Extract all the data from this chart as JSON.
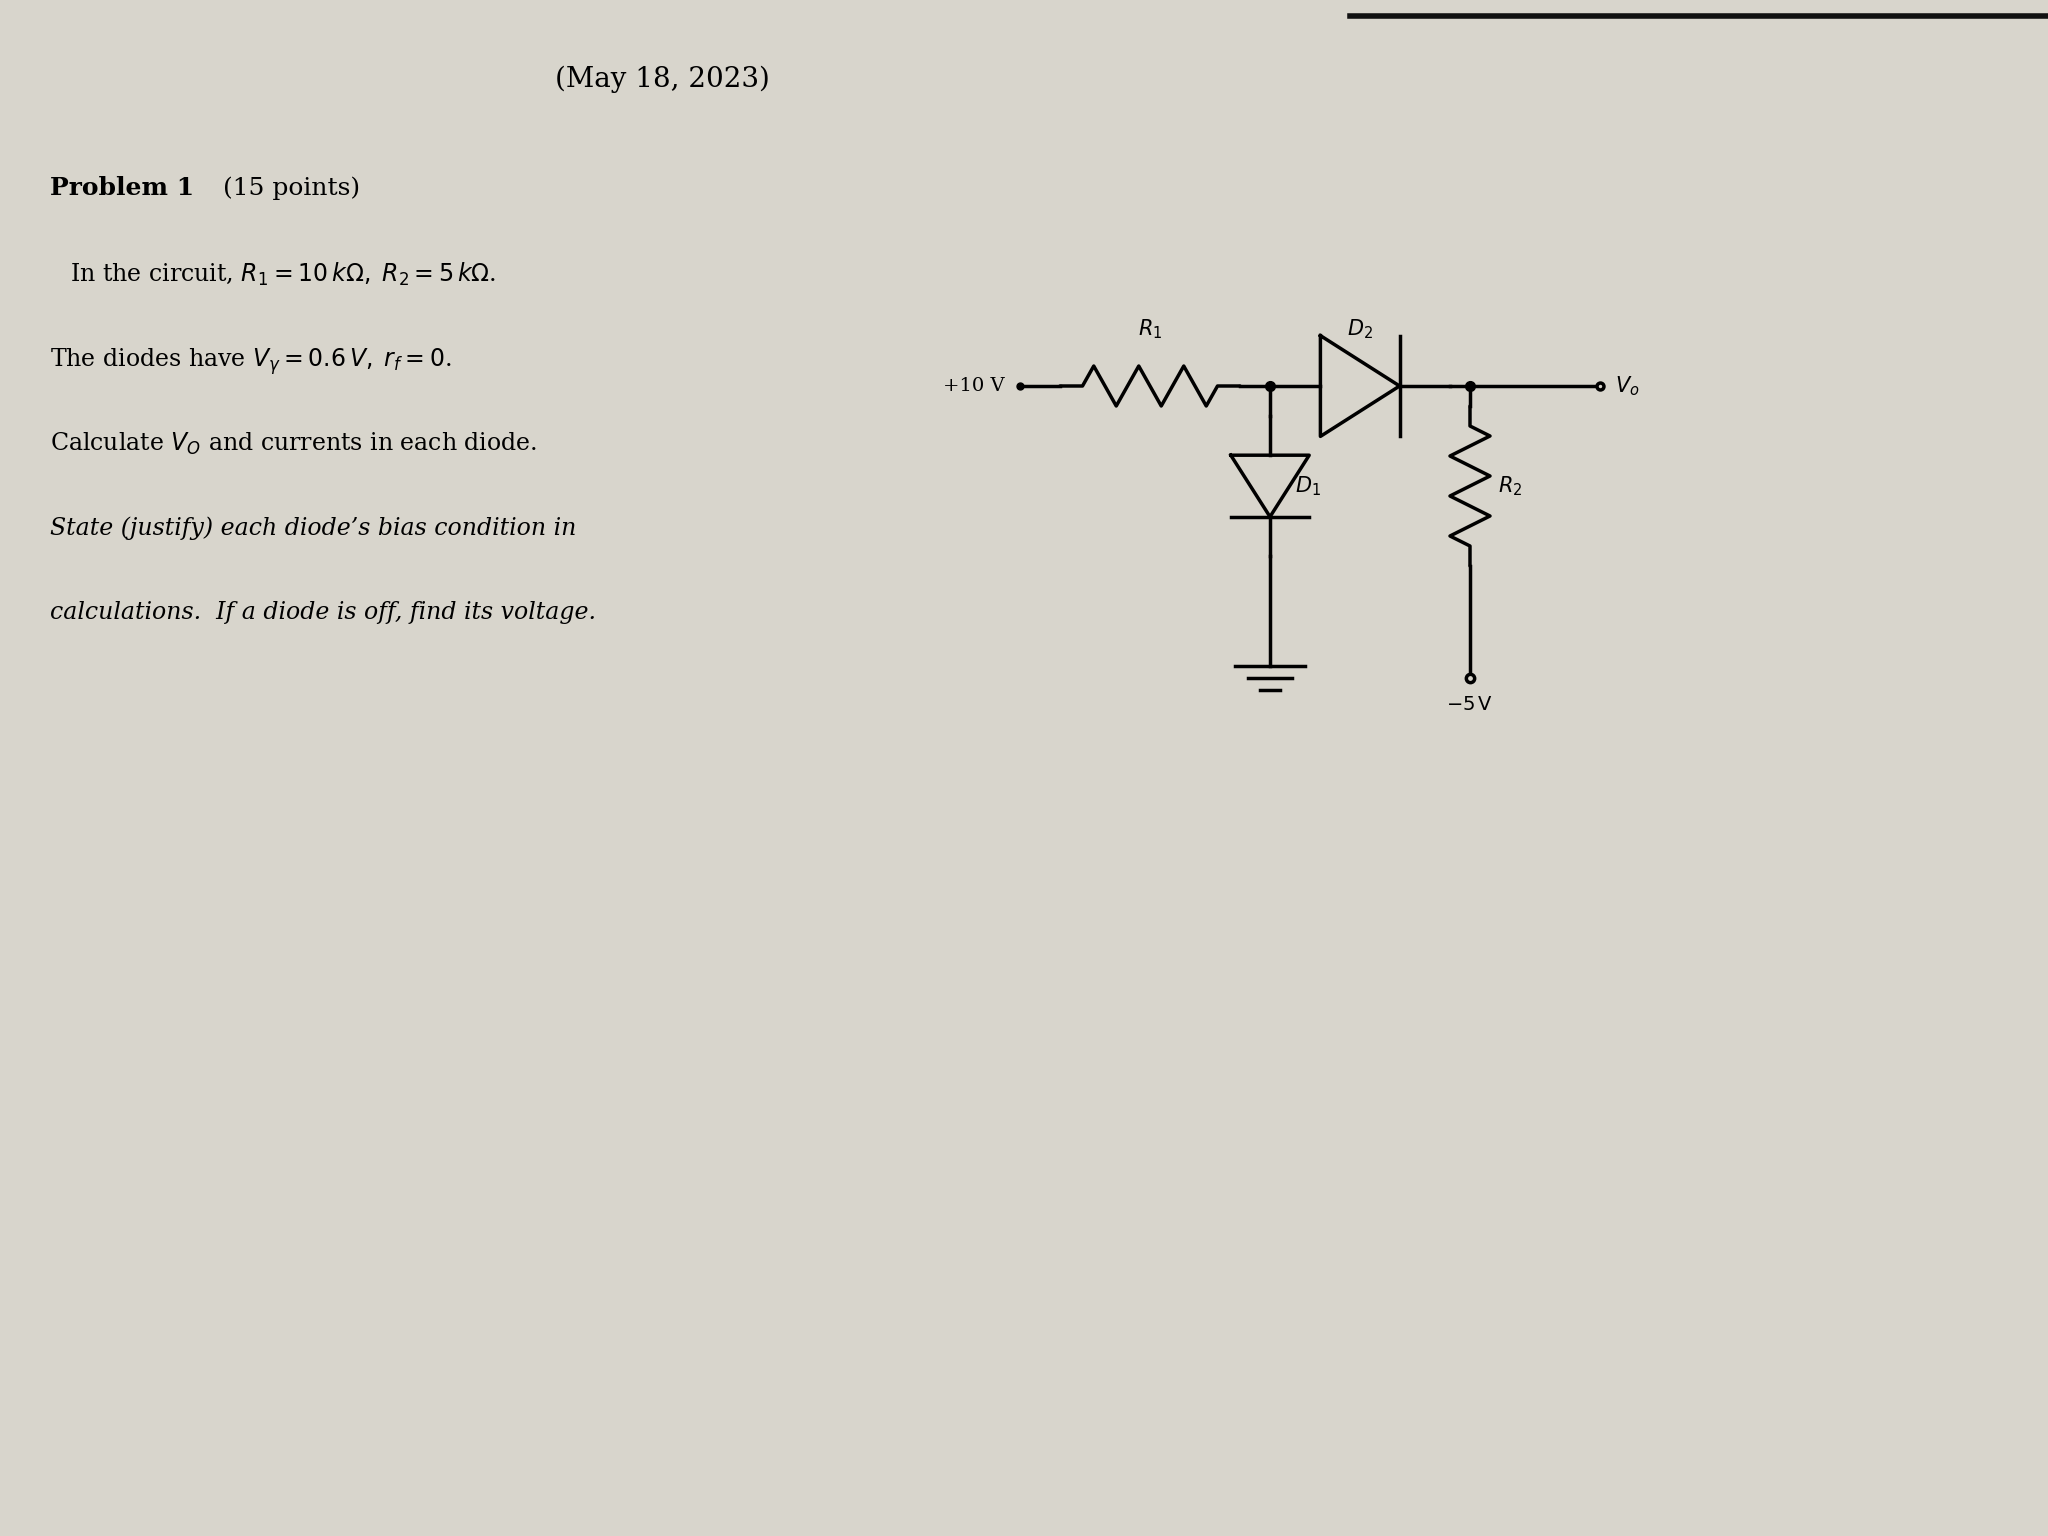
{
  "title": "(May 18, 2023)",
  "title_fontsize": 20,
  "background_color": "#d8d5cc",
  "text_color": "#000000",
  "problem_bold": "Problem 1",
  "problem_normal": " (15 points)",
  "line1": "    In the circuit, $R_1 = 10\\,k\\Omega,\\; R_2 = 5\\,k\\Omega$.",
  "line2": "The diodes have $V_\\gamma = 0.6\\,V,\\; r_f = 0$.",
  "line3": "Calculate $V_O$ and currents in each diode.",
  "line4": "State (justify) each diode’s bias condition in",
  "line5": "calculations.  If a diode is off, find its voltage.",
  "circuit_color": "#000000",
  "lw": 2.5
}
